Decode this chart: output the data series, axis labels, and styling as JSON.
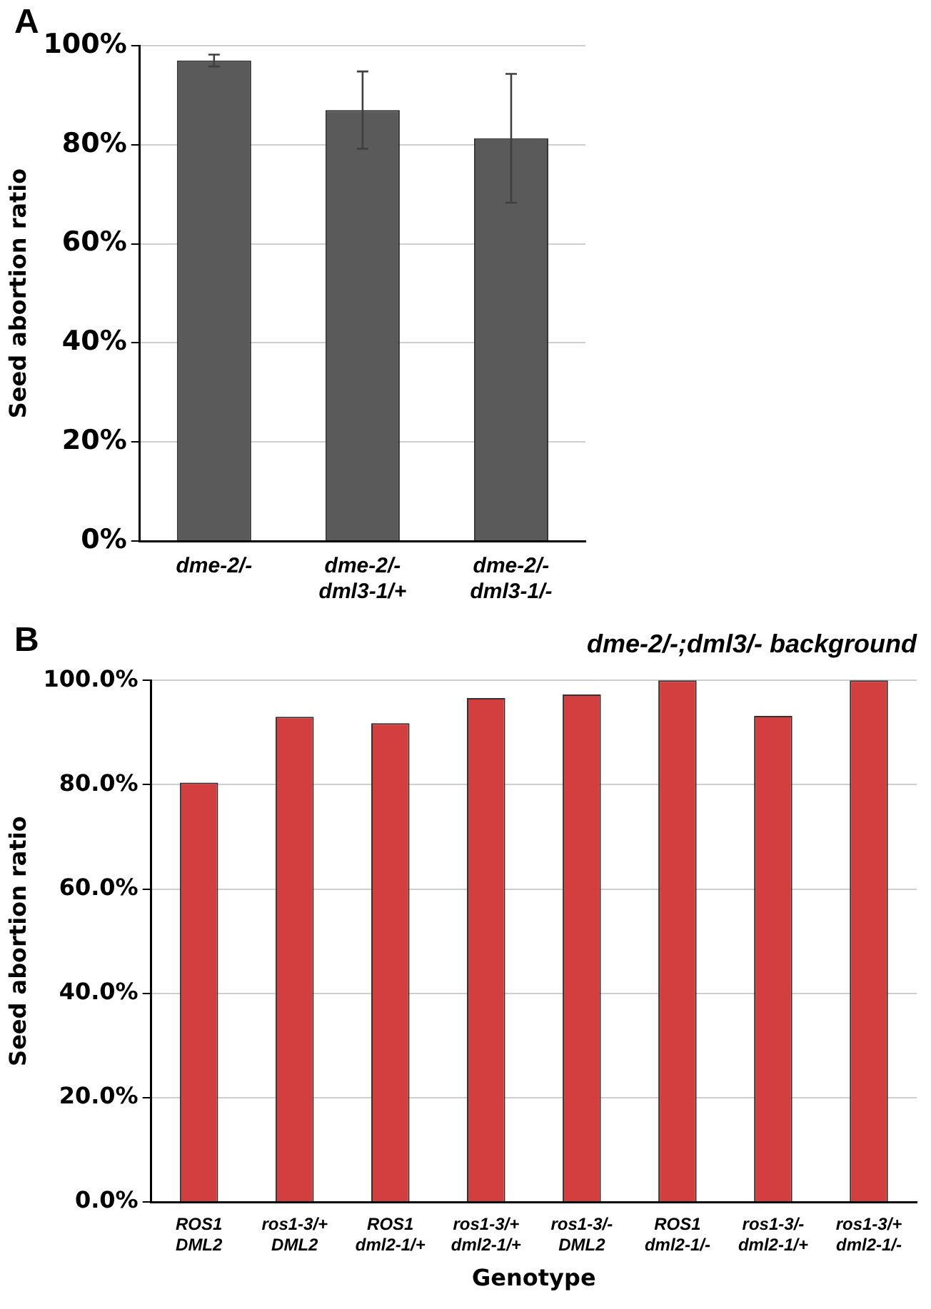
{
  "chart_data": [
    {
      "type": "bar",
      "annotations": [
        "A"
      ],
      "ylabel": "Seed abortion ratio",
      "categories": [
        "dme-2/-",
        "dme-2/-\ndml3-1/+",
        "dme-2/-\ndml3-1/-"
      ],
      "series": [
        {
          "color": "#5a5a5a",
          "values": [
            97,
            87,
            81.3
          ],
          "errors": [
            1.2,
            7.8,
            13
          ]
        }
      ],
      "ylim": [
        0,
        100
      ],
      "yticks": [
        {
          "value": 0,
          "label": "0%"
        },
        {
          "value": 20,
          "label": "20%"
        },
        {
          "value": 40,
          "label": "40%"
        },
        {
          "value": 60,
          "label": "60%"
        },
        {
          "value": 80,
          "label": "80%"
        },
        {
          "value": 100,
          "label": "100%"
        }
      ],
      "grid": "y",
      "legend": false
    },
    {
      "type": "bar",
      "annotations": [
        "B"
      ],
      "title": "dme-2/-;dml3/- background",
      "xlabel": "Genotype",
      "ylabel": "Seed abortion ratio",
      "categories": [
        "ROS1\nDML2",
        "ros1-3/+\nDML2",
        "ROS1\ndml2-1/+",
        "ros1-3/+\ndml2-1/+",
        "ros1-3/-\nDML2",
        "ROS1\ndml2-1/-",
        "ros1-3/-\ndml2-1/+",
        "ros1-3/+\ndml2-1/-"
      ],
      "series": [
        {
          "color": "#d33f3f",
          "values": [
            80.4,
            93,
            91.8,
            96.6,
            97.3,
            100,
            93.2,
            100
          ]
        }
      ],
      "ylim": [
        0,
        100
      ],
      "yticks": [
        {
          "value": 0,
          "label": "0.0%"
        },
        {
          "value": 20,
          "label": "20.0%"
        },
        {
          "value": 40,
          "label": "40.0%"
        },
        {
          "value": 60,
          "label": "60.0%"
        },
        {
          "value": 80,
          "label": "80.0%"
        },
        {
          "value": 100,
          "label": "100.0%"
        }
      ],
      "grid": "y",
      "legend": false
    }
  ]
}
